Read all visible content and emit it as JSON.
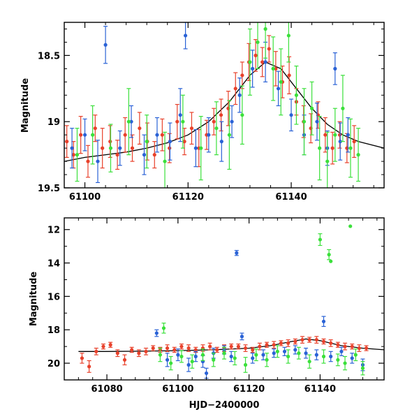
{
  "chart_data": [
    {
      "type": "scatter",
      "panel": "top",
      "xlabel": "",
      "ylabel": "Magnitude",
      "xlim": [
        61096,
        61158
      ],
      "ylim": [
        19.5,
        18.25
      ],
      "y_inverted": true,
      "x_ticks": [
        61100,
        61120,
        61140
      ],
      "y_ticks": [
        18.5,
        19,
        19.5
      ],
      "y_tick_labels": [
        "18.5",
        "19",
        "19.5"
      ],
      "grid": false,
      "legend": "none",
      "series": [
        {
          "color": "#e8412b",
          "x": [
            61096.5,
            61097.8,
            61099.2,
            61100.6,
            61102.0,
            61103.4,
            61104.9,
            61106.3,
            61107.8,
            61109.2,
            61110.6,
            61112.1,
            61113.5,
            61115.0,
            61116.4,
            61117.9,
            61119.3,
            61120.7,
            61122.1,
            61123.6,
            61125.0,
            61126.4,
            61127.8,
            61129.2,
            61130.5,
            61131.8,
            61133.1,
            61134.4,
            61135.7,
            61137.0,
            61138.3,
            61139.6,
            61141.0,
            61142.4,
            61143.8,
            61145.2,
            61146.6,
            61148.0,
            61149.4,
            61150.8,
            61152.2
          ],
          "y": [
            19.15,
            19.25,
            19.1,
            19.3,
            19.05,
            19.2,
            19.15,
            19.25,
            19.1,
            19.2,
            19.05,
            19.15,
            19.25,
            19.1,
            19.2,
            19.0,
            19.15,
            19.05,
            19.2,
            19.1,
            19.0,
            18.95,
            18.9,
            18.75,
            18.65,
            18.55,
            18.5,
            18.55,
            18.45,
            18.6,
            18.7,
            18.65,
            18.85,
            19.0,
            19.05,
            18.95,
            19.1,
            19.2,
            19.1,
            19.2,
            19.15
          ],
          "err": [
            0.12,
            0.1,
            0.14,
            0.12,
            0.1,
            0.15,
            0.12,
            0.11,
            0.13,
            0.1,
            0.12,
            0.14,
            0.1,
            0.12,
            0.11,
            0.13,
            0.1,
            0.12,
            0.14,
            0.11,
            0.1,
            0.12,
            0.13,
            0.12,
            0.1,
            0.14,
            0.12,
            0.11,
            0.1,
            0.13,
            0.12,
            0.14,
            0.1,
            0.12,
            0.11,
            0.1,
            0.13,
            0.12,
            0.1,
            0.11,
            0.12
          ]
        },
        {
          "color": "#2a62d6",
          "x": [
            61097.5,
            61100.0,
            61102.5,
            61104.0,
            61106.8,
            61109.0,
            61111.5,
            61114.0,
            61116.5,
            61118.5,
            61119.5,
            61121.5,
            61124.0,
            61126.5,
            61128.5,
            61130.0,
            61132.5,
            61135.0,
            61137.5,
            61140.0,
            61142.5,
            61145.0,
            61147.0,
            61148.5,
            61149.5,
            61151.0
          ],
          "y": [
            19.2,
            19.1,
            19.3,
            18.42,
            19.2,
            19.0,
            19.25,
            19.1,
            19.15,
            18.95,
            18.35,
            19.2,
            19.1,
            19.15,
            19.0,
            18.8,
            18.6,
            18.55,
            18.75,
            18.95,
            19.1,
            19.0,
            19.2,
            18.6,
            19.15,
            19.1
          ],
          "err": [
            0.15,
            0.12,
            0.16,
            0.14,
            0.13,
            0.12,
            0.15,
            0.13,
            0.14,
            0.2,
            0.1,
            0.14,
            0.13,
            0.15,
            0.12,
            0.13,
            0.14,
            0.15,
            0.13,
            0.12,
            0.15,
            0.14,
            0.13,
            0.12,
            0.14,
            0.13
          ]
        },
        {
          "color": "#3be03b",
          "x": [
            61098.5,
            61101.5,
            61105.0,
            61108.5,
            61112.0,
            61115.5,
            61119.0,
            61122.5,
            61125.5,
            61128.0,
            61130.5,
            61132.0,
            61133.5,
            61135.0,
            61136.5,
            61138.0,
            61139.5,
            61141.0,
            61142.5,
            61144.0,
            61145.5,
            61147.0,
            61148.5,
            61150.0,
            61151.5,
            61153.0
          ],
          "y": [
            19.25,
            19.1,
            19.2,
            19.0,
            19.15,
            19.3,
            19.0,
            19.2,
            19.05,
            19.1,
            18.95,
            18.55,
            18.4,
            18.3,
            18.6,
            18.7,
            18.35,
            18.8,
            19.0,
            18.9,
            19.2,
            19.3,
            19.1,
            18.9,
            19.2,
            19.25
          ],
          "err": [
            0.2,
            0.22,
            0.18,
            0.25,
            0.2,
            0.22,
            0.2,
            0.24,
            0.2,
            0.26,
            0.22,
            0.25,
            0.2,
            0.22,
            0.24,
            0.25,
            0.2,
            0.22,
            0.25,
            0.2,
            0.24,
            0.22,
            0.2,
            0.25,
            0.22,
            0.2
          ]
        }
      ],
      "model_curve": {
        "color": "#000000",
        "x": [
          61096,
          61100,
          61104,
          61108,
          61112,
          61116,
          61120,
          61124,
          61128,
          61132,
          61135,
          61138,
          61141,
          61144,
          61147,
          61150,
          61153,
          61158
        ],
        "y": [
          19.3,
          19.27,
          19.25,
          19.23,
          19.2,
          19.16,
          19.1,
          19.0,
          18.85,
          18.65,
          18.55,
          18.6,
          18.75,
          18.9,
          19.02,
          19.1,
          19.15,
          19.2
        ]
      }
    },
    {
      "type": "scatter",
      "panel": "bottom",
      "xlabel": "HJD−2400000",
      "ylabel": "Magnitude",
      "xlim": [
        61068,
        61158
      ],
      "ylim": [
        21,
        11.3
      ],
      "y_inverted": true,
      "x_ticks": [
        61080,
        61100,
        61120,
        61140
      ],
      "y_ticks": [
        12,
        14,
        16,
        18,
        20
      ],
      "y_tick_labels": [
        "12",
        "14",
        "16",
        "18",
        "20"
      ],
      "grid": false,
      "legend": "none",
      "series": [
        {
          "color": "#e8412b",
          "x": [
            61073,
            61075,
            61077,
            61079,
            61081,
            61083,
            61085,
            61087,
            61089,
            61091,
            61093,
            61095,
            61097,
            61099,
            61101,
            61103,
            61105,
            61107,
            61109,
            61111,
            61113,
            61115,
            61117,
            61119,
            61121,
            61123,
            61125,
            61127,
            61129,
            61131,
            61133,
            61135,
            61137,
            61139,
            61141,
            61143,
            61145,
            61147,
            61149,
            61151,
            61153
          ],
          "y": [
            19.7,
            20.2,
            19.3,
            19.0,
            18.9,
            19.4,
            19.8,
            19.2,
            19.4,
            19.3,
            19.1,
            19.2,
            19.1,
            19.2,
            19.0,
            19.1,
            19.2,
            19.1,
            19.0,
            19.2,
            19.1,
            19.0,
            19.0,
            19.1,
            19.2,
            19.0,
            18.9,
            18.9,
            18.8,
            18.8,
            18.7,
            18.6,
            18.6,
            18.6,
            18.7,
            18.8,
            18.9,
            19.0,
            19.0,
            19.1,
            19.1
          ],
          "err": [
            0.3,
            0.35,
            0.2,
            0.15,
            0.15,
            0.2,
            0.3,
            0.15,
            0.2,
            0.2,
            0.15,
            0.15,
            0.2,
            0.15,
            0.15,
            0.2,
            0.15,
            0.2,
            0.2,
            0.15,
            0.2,
            0.15,
            0.15,
            0.2,
            0.15,
            0.2,
            0.15,
            0.2,
            0.15,
            0.2,
            0.15,
            0.2,
            0.15,
            0.2,
            0.15,
            0.2,
            0.15,
            0.2,
            0.15,
            0.2,
            0.15
          ]
        },
        {
          "color": "#2a62d6",
          "x": [
            61094,
            61097,
            61100,
            61103,
            61105,
            61107,
            61108,
            61110,
            61113,
            61115,
            61116.5,
            61118,
            61121,
            61124,
            61127,
            61130,
            61133,
            61136,
            61139,
            61141,
            61143,
            61146,
            61149,
            61152
          ],
          "y": [
            18.2,
            19.8,
            19.5,
            20.1,
            19.6,
            19.9,
            20.6,
            19.4,
            19.2,
            19.6,
            13.4,
            18.4,
            19.7,
            19.5,
            19.4,
            19.3,
            19.2,
            19.4,
            19.5,
            17.5,
            19.6,
            19.3,
            19.7,
            20.1
          ],
          "err": [
            0.2,
            0.4,
            0.35,
            0.4,
            0.3,
            0.35,
            0.3,
            0.3,
            0.25,
            0.3,
            0.15,
            0.2,
            0.3,
            0.3,
            0.25,
            0.25,
            0.25,
            0.3,
            0.3,
            0.3,
            0.3,
            0.25,
            0.3,
            0.35
          ]
        },
        {
          "color": "#3be03b",
          "x": [
            61095,
            61096,
            61098,
            61101,
            61104,
            61107,
            61110,
            61113,
            61116,
            61119,
            61122,
            61125,
            61128,
            61131,
            61134,
            61137,
            61140,
            61141,
            61142.5,
            61143,
            61145,
            61147,
            61148.5,
            61150,
            61152
          ],
          "y": [
            19.5,
            17.9,
            20.0,
            19.6,
            19.9,
            19.5,
            19.8,
            19.4,
            19.7,
            20.1,
            19.5,
            19.8,
            19.3,
            19.6,
            19.4,
            19.9,
            12.6,
            19.6,
            13.5,
            13.9,
            19.8,
            20.0,
            11.8,
            19.5,
            20.3
          ],
          "err": [
            0.4,
            0.3,
            0.4,
            0.35,
            0.4,
            0.35,
            0.4,
            0.35,
            0.4,
            0.45,
            0.35,
            0.4,
            0.35,
            0.4,
            0.35,
            0.4,
            0.35,
            0.4,
            0.3,
            0.0,
            0.35,
            0.4,
            0.0,
            0.35,
            0.4
          ]
        }
      ],
      "model_curve": {
        "color": "#000000",
        "x": [
          61072,
          61080,
          61090,
          61100,
          61110,
          61120,
          61126,
          61132,
          61136,
          61140,
          61146,
          61152,
          61158
        ],
        "y": [
          19.3,
          19.3,
          19.28,
          19.25,
          19.2,
          19.1,
          18.95,
          18.7,
          18.55,
          18.65,
          18.95,
          19.1,
          19.2
        ]
      }
    }
  ]
}
